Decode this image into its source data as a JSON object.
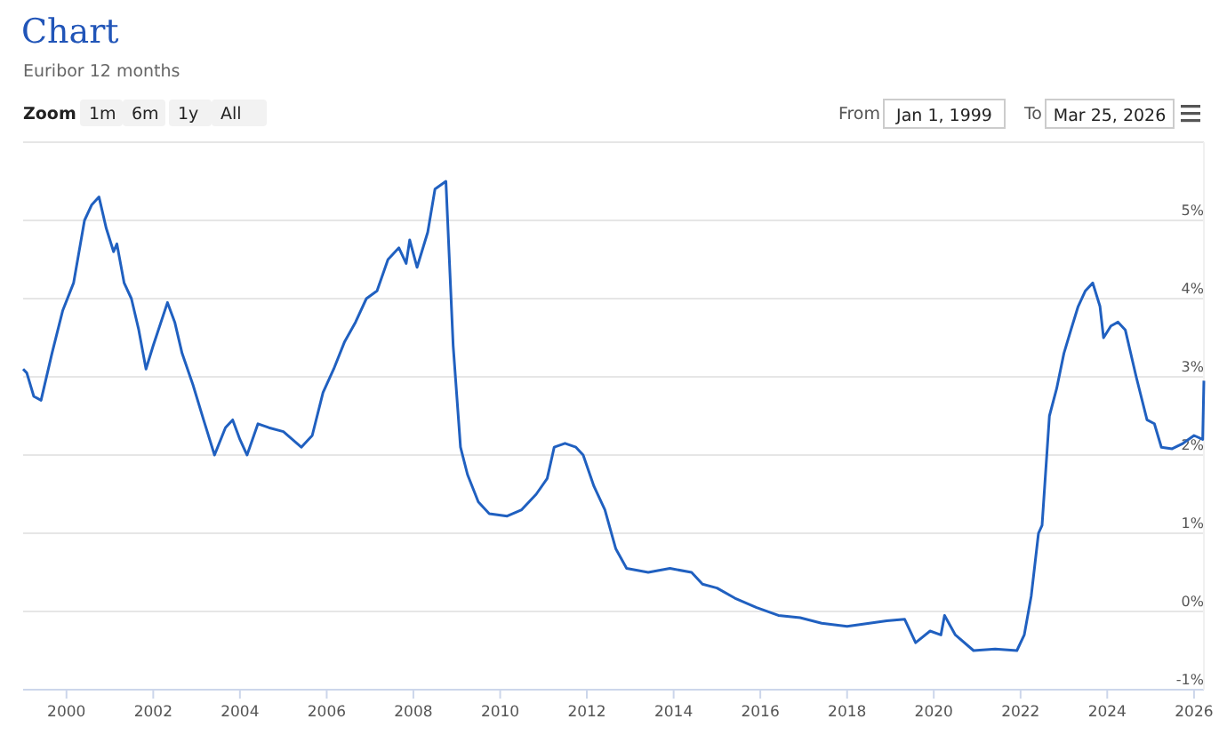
{
  "chart_data": {
    "type": "line",
    "title": "Chart",
    "subtitle": "Euribor 12 months",
    "annotations": [
      "Zoom",
      "1m",
      "6m",
      "1y",
      "All",
      "From",
      "Jan 1, 1999",
      "To",
      "Mar 25, 2026"
    ],
    "x": [
      "1999-01",
      "1999-02",
      "1999-04",
      "1999-06",
      "1999-09",
      "1999-12",
      "2000-03",
      "2000-06",
      "2000-08",
      "2000-10",
      "2000-12",
      "2001-02",
      "2001-03",
      "2001-05",
      "2001-07",
      "2001-09",
      "2001-11",
      "2002-01",
      "2002-05",
      "2002-07",
      "2002-09",
      "2002-12",
      "2003-03",
      "2003-06",
      "2003-09",
      "2003-11",
      "2004-01",
      "2004-03",
      "2004-06",
      "2004-09",
      "2005-01",
      "2005-06",
      "2005-09",
      "2005-12",
      "2006-03",
      "2006-06",
      "2006-09",
      "2006-12",
      "2007-03",
      "2007-06",
      "2007-09",
      "2007-11",
      "2007-12",
      "2008-02",
      "2008-05",
      "2008-07",
      "2008-10",
      "2008-12",
      "2009-02",
      "2009-04",
      "2009-07",
      "2009-10",
      "2010-03",
      "2010-07",
      "2010-11",
      "2011-02",
      "2011-04",
      "2011-07",
      "2011-10",
      "2011-12",
      "2012-03",
      "2012-06",
      "2012-09",
      "2012-12",
      "2013-06",
      "2013-12",
      "2014-06",
      "2014-09",
      "2015-01",
      "2015-06",
      "2015-12",
      "2016-06",
      "2016-12",
      "2017-06",
      "2018-01",
      "2018-12",
      "2019-05",
      "2019-08",
      "2019-12",
      "2020-03",
      "2020-04",
      "2020-07",
      "2020-12",
      "2021-06",
      "2021-12",
      "2022-02",
      "2022-04",
      "2022-06",
      "2022-07",
      "2022-09",
      "2022-11",
      "2023-01",
      "2023-03",
      "2023-05",
      "2023-07",
      "2023-09",
      "2023-11",
      "2023-12",
      "2024-02",
      "2024-04",
      "2024-06",
      "2024-09",
      "2024-12",
      "2025-02",
      "2025-04",
      "2025-07",
      "2025-10",
      "2026-01",
      "2026-03-15",
      "2026-03-25"
    ],
    "series": [
      {
        "color": "#2060c0",
        "values": [
          3.1,
          3.05,
          2.75,
          2.7,
          3.3,
          3.85,
          4.2,
          5.0,
          5.2,
          5.3,
          4.9,
          4.6,
          4.7,
          4.2,
          4.0,
          3.6,
          3.1,
          3.4,
          3.95,
          3.7,
          3.3,
          2.9,
          2.45,
          2.0,
          2.35,
          2.45,
          2.2,
          2.0,
          2.4,
          2.35,
          2.3,
          2.1,
          2.25,
          2.8,
          3.1,
          3.45,
          3.7,
          4.0,
          4.1,
          4.5,
          4.65,
          4.45,
          4.75,
          4.4,
          4.85,
          5.4,
          5.5,
          3.4,
          2.1,
          1.75,
          1.4,
          1.25,
          1.22,
          1.3,
          1.5,
          1.7,
          2.1,
          2.15,
          2.1,
          2.0,
          1.6,
          1.3,
          0.8,
          0.55,
          0.5,
          0.55,
          0.5,
          0.35,
          0.3,
          0.17,
          0.05,
          -0.05,
          -0.08,
          -0.15,
          -0.19,
          -0.12,
          -0.1,
          -0.4,
          -0.25,
          -0.3,
          -0.05,
          -0.3,
          -0.5,
          -0.48,
          -0.5,
          -0.3,
          0.2,
          1.0,
          1.1,
          2.5,
          2.85,
          3.3,
          3.6,
          3.9,
          4.1,
          4.2,
          3.9,
          3.5,
          3.65,
          3.7,
          3.6,
          3.0,
          2.45,
          2.4,
          2.1,
          2.08,
          2.15,
          2.25,
          2.2,
          2.95
        ]
      }
    ],
    "xlim": [
      "1999-01-01",
      "2026-03-25"
    ],
    "xticks": [
      {
        "value": "2000",
        "label": "2000"
      },
      {
        "value": "2002",
        "label": "2002"
      },
      {
        "value": "2004",
        "label": "2004"
      },
      {
        "value": "2006",
        "label": "2006"
      },
      {
        "value": "2008",
        "label": "2008"
      },
      {
        "value": "2010",
        "label": "2010"
      },
      {
        "value": "2012",
        "label": "2012"
      },
      {
        "value": "2014",
        "label": "2014"
      },
      {
        "value": "2016",
        "label": "2016"
      },
      {
        "value": "2018",
        "label": "2018"
      },
      {
        "value": "2020",
        "label": "2020"
      },
      {
        "value": "2022",
        "label": "2022"
      },
      {
        "value": "2024",
        "label": "2024"
      },
      {
        "value": "2026",
        "label": "2026"
      }
    ],
    "ylim": [
      -1,
      6
    ],
    "yticks": [
      {
        "value": -1,
        "label": "-1%"
      },
      {
        "value": 0,
        "label": "0%"
      },
      {
        "value": 1,
        "label": "1%"
      },
      {
        "value": 2,
        "label": "2%"
      },
      {
        "value": 3,
        "label": "3%"
      },
      {
        "value": 4,
        "label": "4%"
      },
      {
        "value": 5,
        "label": "5%"
      }
    ],
    "grid": "y",
    "marker": "none",
    "line_style": "solid"
  }
}
